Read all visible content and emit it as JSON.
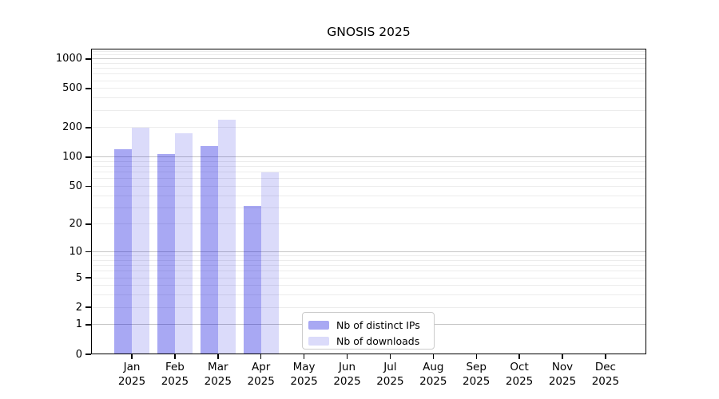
{
  "chart_data": {
    "type": "bar",
    "title": "GNOSIS 2025",
    "categories": [
      "Jan",
      "Feb",
      "Mar",
      "Apr",
      "May",
      "Jun",
      "Jul",
      "Aug",
      "Sep",
      "Oct",
      "Nov",
      "Dec"
    ],
    "x_tick_year": "2025",
    "series": [
      {
        "name": "Nb of distinct IPs",
        "color": "rgba(0,0,221,0.34)",
        "swatch_color": "#a8a8f3",
        "values": [
          120,
          107,
          130,
          31,
          null,
          null,
          null,
          null,
          null,
          null,
          null,
          null
        ]
      },
      {
        "name": "Nb of downloads",
        "color": "rgba(0,0,221,0.14)",
        "swatch_color": "#dbdbfa",
        "values": [
          200,
          175,
          240,
          70,
          null,
          null,
          null,
          null,
          null,
          null,
          null,
          null
        ]
      }
    ],
    "xlabel": "",
    "ylabel": "",
    "yscale": "log1p",
    "ylim": [
      0,
      1270
    ],
    "yticks": [
      0,
      1,
      2,
      5,
      10,
      20,
      50,
      100,
      200,
      500,
      1000
    ],
    "grid": {
      "orientation": "horizontal",
      "major_at": [
        1,
        10,
        100,
        1000
      ],
      "minor_at": [
        2,
        3,
        4,
        5,
        6,
        7,
        8,
        9,
        20,
        30,
        40,
        50,
        60,
        70,
        80,
        90,
        200,
        300,
        400,
        500,
        600,
        700,
        800,
        900,
        1100,
        1200
      ]
    },
    "legend_position": "lower center"
  },
  "colors": {
    "background": "#ffffff",
    "axis": "#000000",
    "text": "#000000",
    "grid_major": "#c6c6c6",
    "grid_minor": "#ececec",
    "legend_border": "#cccccc"
  }
}
